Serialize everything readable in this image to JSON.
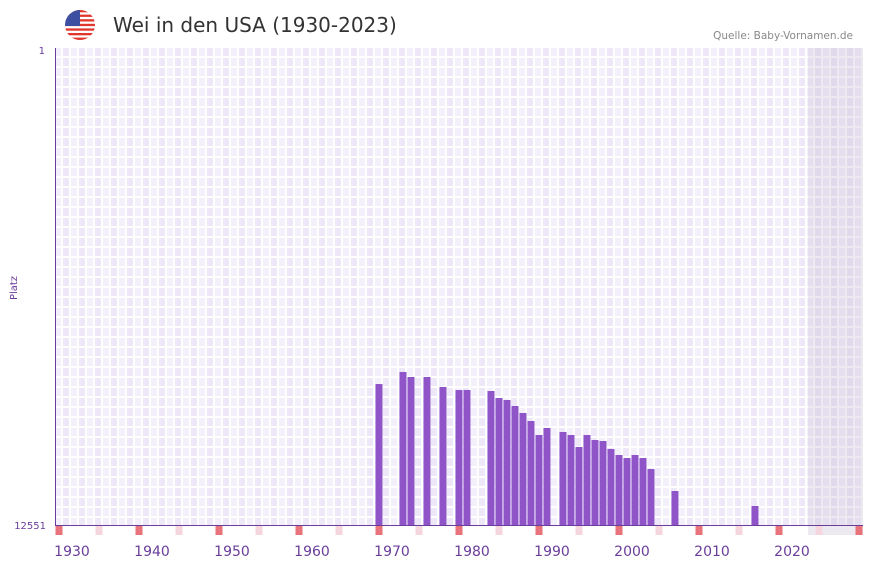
{
  "header": {
    "title": "Wei in den USA (1930-2023)",
    "source": "Quelle: Baby-Vornamen.de",
    "flag_icon": "us-flag-icon"
  },
  "chart_data": {
    "type": "bar",
    "title": "Wei in den USA (1930-2023)",
    "ylabel": "Platz",
    "xlabel": "",
    "ylim": [
      1,
      12551
    ],
    "y_inverted": true,
    "y_tick_labels": [
      "1",
      "12551"
    ],
    "x_tick_labels": [
      "1930",
      "1940",
      "1950",
      "1960",
      "1970",
      "1980",
      "1990",
      "2000",
      "2010",
      "2020"
    ],
    "xlim": [
      1928,
      2028
    ],
    "shaded_from_year": 2022,
    "grid": true,
    "x": [
      1968,
      1971,
      1972,
      1974,
      1976,
      1978,
      1979,
      1982,
      1983,
      1984,
      1985,
      1986,
      1987,
      1988,
      1989,
      1991,
      1992,
      1993,
      1994,
      1995,
      1996,
      1997,
      1998,
      1999,
      2000,
      2001,
      2002,
      2005,
      2015
    ],
    "values": [
      8842,
      8525,
      8657,
      8657,
      8920,
      8999,
      8999,
      9025,
      9210,
      9262,
      9420,
      9604,
      9815,
      10183,
      9999,
      10104,
      10183,
      10499,
      10183,
      10315,
      10341,
      10551,
      10709,
      10788,
      10709,
      10788,
      11078,
      11657,
      12051
    ],
    "colors": {
      "bar": "#8e54c8",
      "axis": "#6a3d9a",
      "marker_decade": "#e8737a",
      "marker_half": "#f5d6de"
    }
  }
}
